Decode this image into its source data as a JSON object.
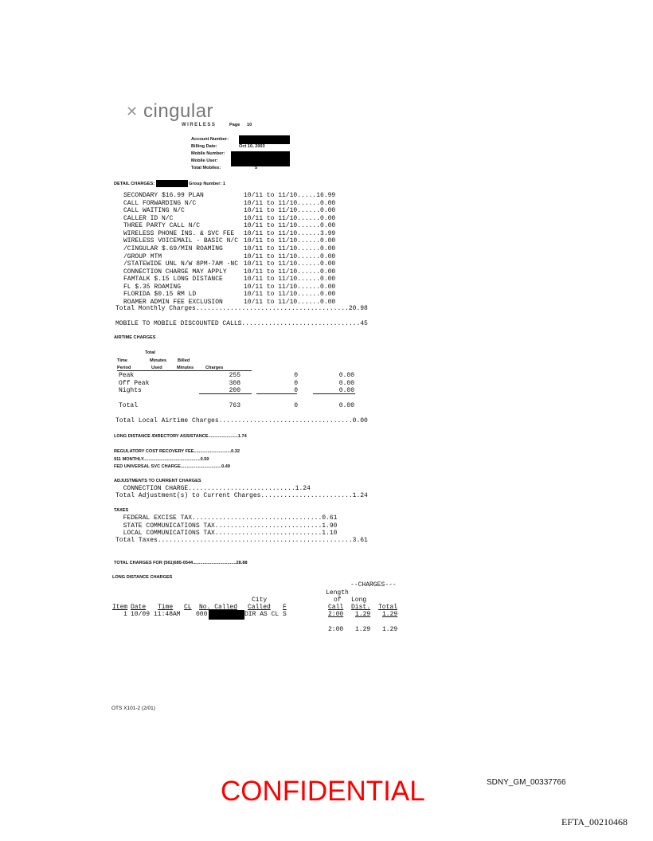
{
  "header": {
    "logo_text": "cingular",
    "logo_sub": "WIRELESS",
    "page_label": "Page",
    "page_number": "10",
    "account_number_label": "Account Number:",
    "billing_date_label": "Billing Date:",
    "billing_date": "Oct 10, 2003",
    "mobile_number_label": "Mobile Number:",
    "mobile_user_label": "Mobile User:",
    "total_mobiles_label": "Total Mobiles:",
    "total_mobiles": "5"
  },
  "detail": {
    "title": "DETAIL CHARGES:",
    "group": "Group Number: 1",
    "items": [
      {
        "desc": "SECONDARY $16.99 PLAN",
        "charge": "10/11 to 11/10.....16.99"
      },
      {
        "desc": "CALL FORWARDING N/C",
        "charge": "10/11 to 11/10......0.00"
      },
      {
        "desc": "CALL WAITING N/C",
        "charge": "10/11 to 11/10......0.00"
      },
      {
        "desc": "CALLER ID N/C",
        "charge": "10/11 to 11/10......0.00"
      },
      {
        "desc": "THREE PARTY CALL N/C",
        "charge": "10/11 to 11/10......0.00"
      },
      {
        "desc": "WIRELESS PHONE INS. & SVC FEE",
        "charge": "10/11 to 11/10......3.99"
      },
      {
        "desc": "WIRELESS VOICEMAIL - BASIC N/C",
        "charge": "10/11 to 11/10......0.00"
      },
      {
        "desc": "/CINGULAR $.69/MIN ROAMING",
        "charge": "10/11 to 11/10......0.00"
      },
      {
        "desc": "/GROUP MTM",
        "charge": "10/11 to 11/10......0.00"
      },
      {
        "desc": "/STATEWIDE UNL N/W 8PM-7AM -NC",
        "charge": "10/11 to 11/10......0.00"
      },
      {
        "desc": "CONNECTION CHARGE MAY APPLY",
        "charge": "10/11 to 11/10......0.00"
      },
      {
        "desc": "FAMTALK $.15 LONG DISTANCE",
        "charge": "10/11 to 11/10......0.00"
      },
      {
        "desc": "FL $.35 ROAMING",
        "charge": "10/11 to 11/10......0.00"
      },
      {
        "desc": "FLORIDA $0.15 RM LD",
        "charge": "10/11 to 11/10......0.00"
      },
      {
        "desc": "ROAMER ADMIN FEE EXCLUSION",
        "charge": "10/11 to 11/10......0.00"
      }
    ],
    "total_monthly": "Total Monthly Charges........................................20.98",
    "mobile_to_mobile": "MOBILE TO MOBILE DISCOUNTED CALLS...............................45"
  },
  "airtime": {
    "title": "AIRTIME CHARGES",
    "h_total": "Total",
    "h_time": "Time",
    "h_minutes": "Minutes",
    "h_billed": "Billed",
    "h_period": "Period",
    "h_used": "Used",
    "h_minutes2": "Minutes",
    "h_charges": "Charges",
    "rows": [
      {
        "period": "Peak",
        "used": "255",
        "billed": "0",
        "charges": "0.00"
      },
      {
        "period": "Off Peak",
        "used": "308",
        "billed": "0",
        "charges": "0.00"
      },
      {
        "period": "Nights",
        "used": "200",
        "billed": "0",
        "charges": "0.00"
      }
    ],
    "total": {
      "period": "Total",
      "used": "763",
      "billed": "0",
      "charges": "0.00"
    },
    "total_local": "Total Local Airtime Charges...................................0.00"
  },
  "other": {
    "ld_da": "LONG DISTANCE /DIRECTORY ASSISTANCE........................1.74",
    "reg": "REGULATORY COST RECOVERY FEE..............................0.32",
    "e911": "911 MONTHLY..............................................0.50",
    "usf": "FED UNIVERSAL SVC CHARGE.................................0.49"
  },
  "adjustments": {
    "title": "ADJUSTMENTS TO CURRENT CHARGES",
    "line": "  CONNECTION CHARGE............................1.24",
    "total": "Total Adjustment(s) to Current Charges........................1.24"
  },
  "taxes": {
    "title": "TAXES",
    "lines": [
      "  FEDERAL EXCISE TAX..................................0.61",
      "  STATE COMMUNICATIONS TAX............................1.90",
      "  LOCAL COMMUNICATIONS TAX............................1.10"
    ],
    "total": "Total Taxes...................................................3.61"
  },
  "total_charges": "TOTAL CHARGES FOR (561)685-0544...................................28.88",
  "long_distance": {
    "title": "LONG DISTANCE CHARGES",
    "charges_hdr": "--CHARGES---",
    "h": {
      "length": "Length",
      "city": "City",
      "of": "of",
      "long": "Long",
      "item": "Item",
      "date": "Date",
      "time": "Time",
      "cl": "CL",
      "no": "No. Called",
      "called": "Called",
      "f": "F",
      "call": "Call",
      "dist": "Dist.",
      "total": "Total"
    },
    "row": {
      "item": "1",
      "date": "10/09",
      "time": "11:48AM",
      "no": "000",
      "city": "DIR AS CL",
      "f": "S",
      "call": "2:00",
      "dist": "1.29",
      "total": "1.29"
    },
    "sum": {
      "call": "2:00",
      "dist": "1.29",
      "total": "1.29"
    }
  },
  "footer": {
    "form": "OTS X101-2 (2/01)",
    "confidential": "CONFIDENTIAL",
    "bates": "SDNY_GM_00337766",
    "efta": "EFTA_00210468"
  }
}
